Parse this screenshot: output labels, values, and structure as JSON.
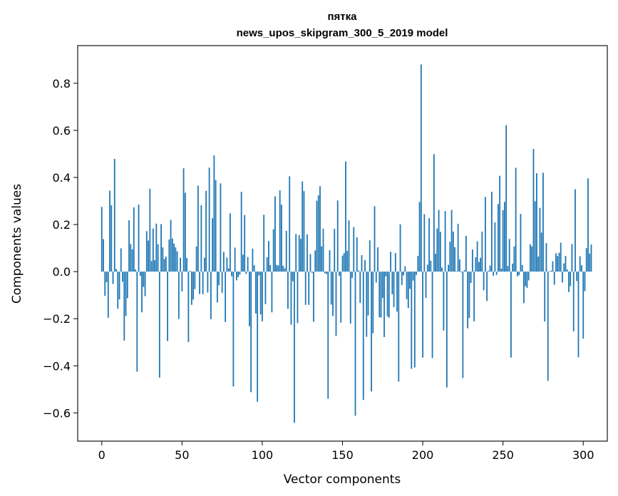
{
  "chart_data": {
    "type": "bar",
    "title": "пятка",
    "subtitle": "news_upos_skipgram_300_5_2019 model",
    "xlabel": "Vector components",
    "ylabel": "Components values",
    "xlim": [
      -15,
      315
    ],
    "ylim": [
      -0.72,
      0.96
    ],
    "xticks": [
      0,
      50,
      100,
      150,
      200,
      250,
      300
    ],
    "xtick_labels": [
      "0",
      "50",
      "100",
      "150",
      "200",
      "250",
      "300"
    ],
    "yticks": [
      -0.6,
      -0.4,
      -0.2,
      0.0,
      0.2,
      0.4,
      0.6,
      0.8
    ],
    "ytick_labels": [
      "−0.6",
      "−0.4",
      "−0.2",
      "0.0",
      "0.2",
      "0.4",
      "0.6",
      "0.8"
    ],
    "bar_color": "#1f77b4",
    "grid": false,
    "values": [
      0.275,
      0.138,
      -0.103,
      -0.045,
      -0.196,
      0.344,
      0.282,
      -0.053,
      0.479,
      0.011,
      -0.158,
      -0.118,
      0.099,
      -0.043,
      -0.293,
      -0.188,
      -0.113,
      0.218,
      0.117,
      0.095,
      0.273,
      0.009,
      -0.425,
      0.285,
      -0.018,
      -0.173,
      -0.065,
      -0.104,
      0.172,
      0.132,
      0.352,
      0.045,
      0.183,
      0.049,
      0.204,
      0.116,
      -0.45,
      0.202,
      0.103,
      0.054,
      0.064,
      -0.295,
      0.136,
      0.22,
      0.141,
      0.119,
      0.103,
      0.086,
      -0.201,
      0.059,
      -0.084,
      0.439,
      0.335,
      0.058,
      -0.299,
      0.004,
      -0.141,
      -0.119,
      -0.074,
      0.107,
      0.365,
      -0.095,
      0.282,
      -0.096,
      0.059,
      0.343,
      -0.089,
      0.442,
      -0.202,
      0.227,
      0.494,
      0.389,
      -0.131,
      -0.058,
      0.375,
      -0.09,
      0.084,
      -0.214,
      0.06,
      0.014,
      0.248,
      -0.02,
      -0.488,
      0.102,
      -0.037,
      -0.023,
      -0.013,
      0.339,
      0.072,
      0.24,
      -0.01,
      0.062,
      -0.232,
      -0.512,
      0.098,
      0.027,
      -0.178,
      -0.553,
      -0.016,
      -0.182,
      -0.211,
      0.242,
      -0.138,
      0.061,
      0.13,
      0.028,
      -0.173,
      0.18,
      0.32,
      0.028,
      0.026,
      0.345,
      0.284,
      0.025,
      0.014,
      0.173,
      -0.158,
      0.405,
      -0.226,
      -0.041,
      -0.642,
      0.16,
      -0.219,
      0.155,
      0.139,
      0.383,
      0.342,
      -0.141,
      0.158,
      -0.141,
      0.075,
      -0.005,
      -0.213,
      0.09,
      0.301,
      0.324,
      0.363,
      0.107,
      0.182,
      -0.007,
      -0.01,
      -0.54,
      0.091,
      -0.14,
      -0.189,
      0.182,
      -0.273,
      0.302,
      -0.018,
      -0.217,
      0.068,
      0.079,
      0.468,
      0.088,
      0.218,
      -0.221,
      -0.027,
      0.189,
      -0.612,
      0.146,
      0.005,
      -0.133,
      0.07,
      -0.545,
      0.049,
      -0.277,
      -0.186,
      0.133,
      -0.509,
      -0.262,
      0.278,
      -0.046,
      0.103,
      -0.194,
      -0.195,
      -0.112,
      -0.278,
      -0.02,
      -0.19,
      -0.196,
      0.084,
      -0.096,
      -0.151,
      0.079,
      -0.17,
      -0.467,
      0.201,
      -0.057,
      -0.016,
      0.023,
      -0.117,
      -0.155,
      -0.073,
      -0.413,
      -0.038,
      -0.407,
      -0.014,
      0.067,
      0.296,
      0.88,
      -0.365,
      0.244,
      -0.112,
      0.029,
      0.227,
      0.046,
      -0.367,
      0.499,
      0.076,
      0.183,
      0.262,
      0.169,
      0.017,
      -0.25,
      0.257,
      -0.492,
      0.029,
      0.127,
      0.262,
      0.17,
      0.104,
      0.002,
      0.203,
      0.052,
      -0.003,
      -0.452,
      0.006,
      0.152,
      -0.241,
      -0.197,
      -0.048,
      0.094,
      -0.211,
      0.061,
      0.129,
      0.041,
      0.059,
      0.17,
      -0.079,
      0.317,
      -0.125,
      0.004,
      0.026,
      0.339,
      -0.018,
      0.209,
      -0.014,
      0.287,
      0.407,
      0.013,
      0.261,
      0.296,
      0.622,
      0.024,
      0.139,
      -0.365,
      0.034,
      0.107,
      0.441,
      -0.02,
      -0.015,
      0.245,
      0.028,
      -0.134,
      -0.062,
      -0.069,
      -0.037,
      0.116,
      0.107,
      0.521,
      0.299,
      0.418,
      0.064,
      0.271,
      0.166,
      0.42,
      -0.212,
      0.121,
      -0.464,
      0.002,
      0.004,
      0.044,
      -0.056,
      0.078,
      0.066,
      0.08,
      0.123,
      -0.046,
      0.035,
      0.067,
      0.009,
      -0.087,
      -0.062,
      0.117,
      -0.254,
      0.35,
      -0.04,
      -0.364,
      0.065,
      0.027,
      -0.285,
      -0.083,
      0.1,
      0.396,
      0.077,
      0.115
    ]
  }
}
